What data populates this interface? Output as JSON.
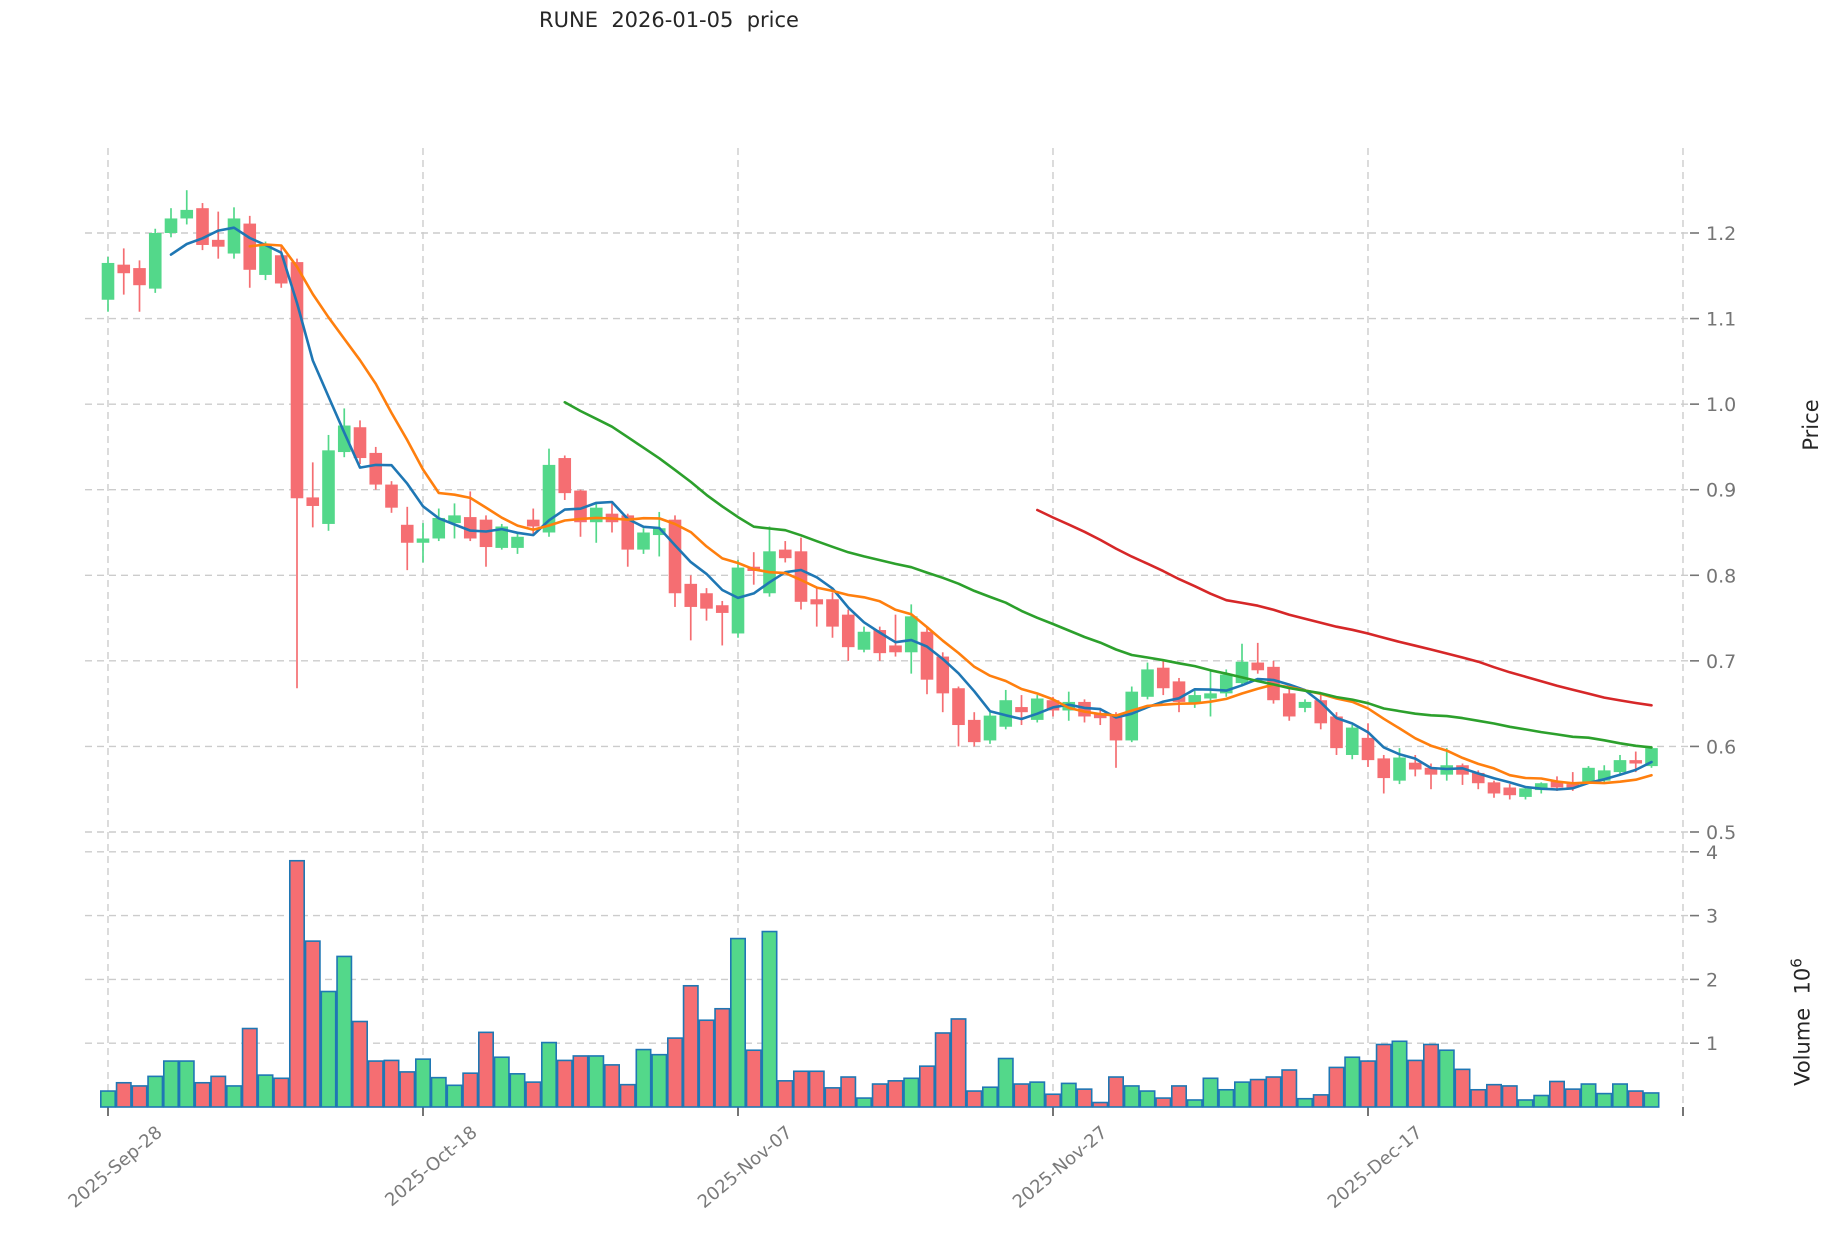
{
  "title": "RUNE  2026-01-05  price",
  "price_axis": {
    "label": "Price",
    "ticks": [
      0.5,
      0.6,
      0.7,
      0.8,
      0.9,
      1.0,
      1.1,
      1.2
    ]
  },
  "volume_axis": {
    "label": "Volume",
    "unit_base": "10",
    "unit_exponent": "6",
    "ticks": [
      1,
      2,
      3,
      4
    ]
  },
  "x_axis": {
    "tick_indices": [
      0,
      20,
      40,
      60,
      80,
      100
    ],
    "tick_labels": [
      "2025-Sep-28",
      "2025-Oct-18",
      "2025-Nov-07",
      "2025-Nov-27",
      "2025-Dec-17"
    ]
  },
  "chart_data": {
    "type": "candlestick+volume",
    "title": "RUNE  2026-01-05  price",
    "ylabel": "Price",
    "ylabel2": "Volume 10^6",
    "ylim_price": [
      0.49,
      1.3
    ],
    "ylim_volume": [
      0,
      4.3
    ],
    "grid": true,
    "dates": [
      "2025-09-28",
      "2025-09-29",
      "2025-09-30",
      "2025-10-01",
      "2025-10-02",
      "2025-10-03",
      "2025-10-04",
      "2025-10-05",
      "2025-10-06",
      "2025-10-07",
      "2025-10-08",
      "2025-10-09",
      "2025-10-10",
      "2025-10-11",
      "2025-10-12",
      "2025-10-13",
      "2025-10-14",
      "2025-10-15",
      "2025-10-16",
      "2025-10-17",
      "2025-10-18",
      "2025-10-19",
      "2025-10-20",
      "2025-10-21",
      "2025-10-22",
      "2025-10-23",
      "2025-10-24",
      "2025-10-25",
      "2025-10-26",
      "2025-10-27",
      "2025-10-28",
      "2025-10-29",
      "2025-10-30",
      "2025-10-31",
      "2025-11-01",
      "2025-11-02",
      "2025-11-03",
      "2025-11-04",
      "2025-11-05",
      "2025-11-06",
      "2025-11-07",
      "2025-11-08",
      "2025-11-09",
      "2025-11-10",
      "2025-11-11",
      "2025-11-12",
      "2025-11-13",
      "2025-11-14",
      "2025-11-15",
      "2025-11-16",
      "2025-11-17",
      "2025-11-18",
      "2025-11-19",
      "2025-11-20",
      "2025-11-21",
      "2025-11-22",
      "2025-11-23",
      "2025-11-24",
      "2025-11-25",
      "2025-11-26",
      "2025-11-27",
      "2025-11-28",
      "2025-11-29",
      "2025-11-30",
      "2025-12-01",
      "2025-12-02",
      "2025-12-03",
      "2025-12-04",
      "2025-12-05",
      "2025-12-06",
      "2025-12-07",
      "2025-12-08",
      "2025-12-09",
      "2025-12-10",
      "2025-12-11",
      "2025-12-12",
      "2025-12-13",
      "2025-12-14",
      "2025-12-15",
      "2025-12-16",
      "2025-12-17",
      "2025-12-18",
      "2025-12-19",
      "2025-12-20",
      "2025-12-21",
      "2025-12-22",
      "2025-12-23",
      "2025-12-24",
      "2025-12-25",
      "2025-12-26",
      "2025-12-27",
      "2025-12-28",
      "2025-12-29",
      "2025-12-30",
      "2025-12-31",
      "2026-01-01",
      "2026-01-02",
      "2026-01-03",
      "2026-01-04"
    ],
    "open": [
      1.122,
      1.163,
      1.159,
      1.135,
      1.2,
      1.217,
      1.229,
      1.192,
      1.176,
      1.211,
      1.151,
      1.174,
      1.166,
      0.891,
      0.86,
      0.944,
      0.973,
      0.943,
      0.906,
      0.859,
      0.838,
      0.843,
      0.861,
      0.868,
      0.865,
      0.832,
      0.832,
      0.865,
      0.85,
      0.937,
      0.899,
      0.862,
      0.872,
      0.87,
      0.83,
      0.847,
      0.865,
      0.79,
      0.779,
      0.765,
      0.732,
      0.81,
      0.779,
      0.83,
      0.828,
      0.772,
      0.772,
      0.754,
      0.713,
      0.736,
      0.718,
      0.71,
      0.734,
      0.705,
      0.668,
      0.631,
      0.607,
      0.623,
      0.646,
      0.631,
      0.654,
      0.642,
      0.652,
      0.639,
      0.636,
      0.607,
      0.658,
      0.692,
      0.676,
      0.65,
      0.656,
      0.662,
      0.674,
      0.698,
      0.693,
      0.662,
      0.645,
      0.654,
      0.635,
      0.59,
      0.61,
      0.586,
      0.56,
      0.581,
      0.575,
      0.567,
      0.578,
      0.569,
      0.558,
      0.552,
      0.541,
      0.549,
      0.559,
      0.556,
      0.559,
      0.56,
      0.57,
      0.584,
      0.577
    ],
    "high": [
      1.172,
      1.182,
      1.168,
      1.205,
      1.229,
      1.25,
      1.235,
      1.225,
      1.23,
      1.22,
      1.19,
      1.185,
      1.17,
      0.932,
      0.964,
      0.995,
      0.981,
      0.95,
      0.91,
      0.88,
      0.861,
      0.878,
      0.884,
      0.898,
      0.87,
      0.86,
      0.85,
      0.878,
      0.948,
      0.94,
      0.9,
      0.884,
      0.884,
      0.872,
      0.855,
      0.874,
      0.87,
      0.8,
      0.785,
      0.77,
      0.818,
      0.827,
      0.857,
      0.84,
      0.844,
      0.785,
      0.78,
      0.76,
      0.74,
      0.74,
      0.754,
      0.766,
      0.74,
      0.71,
      0.67,
      0.64,
      0.64,
      0.666,
      0.66,
      0.66,
      0.658,
      0.664,
      0.655,
      0.645,
      0.64,
      0.67,
      0.698,
      0.7,
      0.68,
      0.665,
      0.69,
      0.69,
      0.72,
      0.721,
      0.7,
      0.67,
      0.655,
      0.66,
      0.64,
      0.625,
      0.627,
      0.59,
      0.598,
      0.59,
      0.58,
      0.598,
      0.58,
      0.572,
      0.56,
      0.556,
      0.553,
      0.558,
      0.565,
      0.57,
      0.577,
      0.578,
      0.59,
      0.594,
      0.6
    ],
    "low": [
      1.108,
      1.128,
      1.108,
      1.13,
      1.195,
      1.21,
      1.18,
      1.17,
      1.17,
      1.136,
      1.145,
      1.136,
      0.668,
      0.856,
      0.852,
      0.938,
      0.93,
      0.9,
      0.873,
      0.806,
      0.815,
      0.84,
      0.843,
      0.84,
      0.81,
      0.83,
      0.825,
      0.847,
      0.845,
      0.888,
      0.845,
      0.838,
      0.85,
      0.81,
      0.825,
      0.822,
      0.763,
      0.724,
      0.747,
      0.718,
      0.727,
      0.789,
      0.775,
      0.815,
      0.76,
      0.74,
      0.727,
      0.7,
      0.71,
      0.7,
      0.705,
      0.685,
      0.661,
      0.64,
      0.6,
      0.6,
      0.603,
      0.62,
      0.625,
      0.628,
      0.635,
      0.63,
      0.628,
      0.625,
      0.575,
      0.605,
      0.655,
      0.66,
      0.64,
      0.645,
      0.635,
      0.658,
      0.67,
      0.685,
      0.65,
      0.63,
      0.64,
      0.62,
      0.59,
      0.585,
      0.576,
      0.545,
      0.556,
      0.565,
      0.55,
      0.56,
      0.555,
      0.55,
      0.54,
      0.538,
      0.538,
      0.545,
      0.548,
      0.548,
      0.557,
      0.558,
      0.566,
      0.57,
      0.575
    ],
    "close": [
      1.165,
      1.153,
      1.139,
      1.2,
      1.217,
      1.227,
      1.186,
      1.184,
      1.217,
      1.157,
      1.186,
      1.141,
      0.89,
      0.881,
      0.946,
      0.975,
      0.937,
      0.906,
      0.879,
      0.838,
      0.843,
      0.867,
      0.87,
      0.843,
      0.833,
      0.857,
      0.845,
      0.857,
      0.929,
      0.896,
      0.862,
      0.879,
      0.862,
      0.83,
      0.85,
      0.855,
      0.779,
      0.763,
      0.761,
      0.756,
      0.809,
      0.805,
      0.828,
      0.82,
      0.769,
      0.766,
      0.74,
      0.716,
      0.734,
      0.709,
      0.71,
      0.752,
      0.678,
      0.662,
      0.625,
      0.605,
      0.636,
      0.654,
      0.64,
      0.656,
      0.642,
      0.652,
      0.635,
      0.633,
      0.607,
      0.664,
      0.69,
      0.668,
      0.652,
      0.66,
      0.662,
      0.684,
      0.699,
      0.689,
      0.654,
      0.635,
      0.652,
      0.627,
      0.598,
      0.622,
      0.584,
      0.563,
      0.587,
      0.573,
      0.567,
      0.578,
      0.567,
      0.557,
      0.545,
      0.543,
      0.551,
      0.557,
      0.552,
      0.552,
      0.575,
      0.572,
      0.584,
      0.58,
      0.598
    ],
    "volume_millions": [
      0.25,
      0.38,
      0.33,
      0.48,
      0.72,
      0.72,
      0.38,
      0.48,
      0.33,
      1.23,
      0.5,
      0.45,
      3.86,
      2.6,
      1.81,
      2.36,
      1.34,
      0.72,
      0.73,
      0.55,
      0.75,
      0.46,
      0.34,
      0.53,
      1.17,
      0.78,
      0.52,
      0.39,
      1.01,
      0.73,
      0.8,
      0.8,
      0.66,
      0.35,
      0.9,
      0.82,
      1.08,
      1.9,
      1.36,
      1.54,
      2.64,
      0.89,
      2.75,
      0.41,
      0.56,
      0.56,
      0.3,
      0.47,
      0.14,
      0.36,
      0.41,
      0.45,
      0.64,
      1.16,
      1.38,
      0.25,
      0.31,
      0.76,
      0.36,
      0.39,
      0.2,
      0.37,
      0.28,
      0.07,
      0.47,
      0.33,
      0.25,
      0.14,
      0.33,
      0.11,
      0.45,
      0.27,
      0.39,
      0.43,
      0.47,
      0.58,
      0.13,
      0.19,
      0.62,
      0.78,
      0.72,
      0.98,
      1.03,
      0.73,
      0.98,
      0.89,
      0.59,
      0.27,
      0.35,
      0.33,
      0.11,
      0.18,
      0.4,
      0.28,
      0.36,
      0.21,
      0.36,
      0.25,
      0.22
    ],
    "moving_averages": [
      {
        "window": 5,
        "color": "#1f77b4"
      },
      {
        "window": 10,
        "color": "#ff7f0e"
      },
      {
        "window": 30,
        "color": "#2ca02c"
      },
      {
        "window": 60,
        "color": "#d62728"
      }
    ],
    "colors": {
      "up": "#53d88a",
      "down": "#f56e72",
      "volume_edge": "#1f77b4",
      "grid": "#cccccc",
      "tick_text": "#757575"
    },
    "legend_position": "none"
  }
}
